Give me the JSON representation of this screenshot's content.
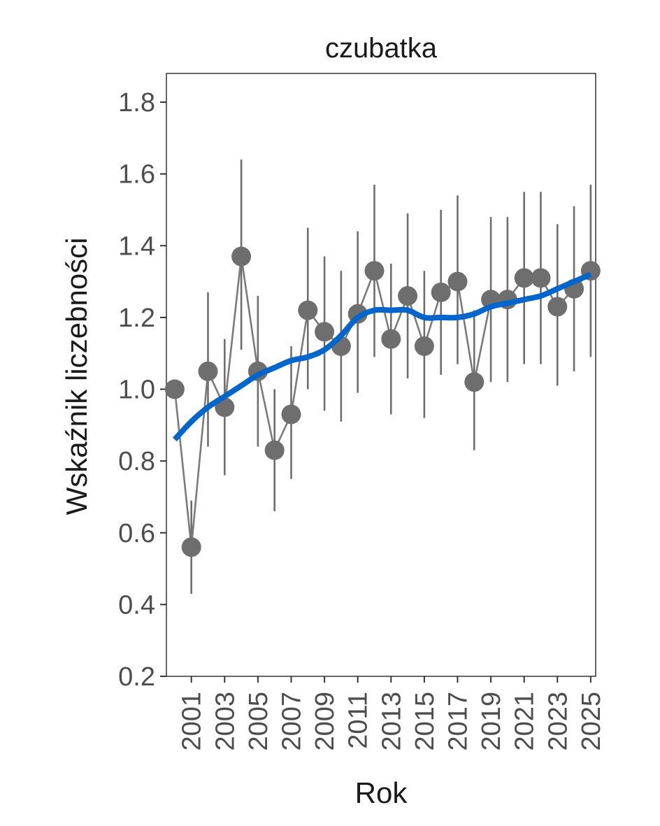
{
  "chart_data": {
    "type": "line",
    "title": "czubatka",
    "xlabel": "Rok",
    "ylabel": "Wskaźnik liczebności",
    "xlim": [
      1999.5,
      2025.3
    ],
    "ylim": [
      0.2,
      1.88
    ],
    "yticks": [
      0.2,
      0.4,
      0.6,
      0.8,
      1.0,
      1.2,
      1.4,
      1.6,
      1.8
    ],
    "ytick_labels": [
      "0.2",
      "0.4",
      "0.6",
      "0.8",
      "1.0",
      "1.2",
      "1.4",
      "1.6",
      "1.8"
    ],
    "xticks": [
      2001,
      2003,
      2005,
      2007,
      2009,
      2011,
      2013,
      2015,
      2017,
      2019,
      2021,
      2023,
      2025
    ],
    "xtick_labels": [
      "2001",
      "2003",
      "2005",
      "2007",
      "2009",
      "2011",
      "2013",
      "2015",
      "2017",
      "2019",
      "2021",
      "2023",
      "2025"
    ],
    "points": {
      "name": "Wskaźnik",
      "x": [
        2000,
        2001,
        2002,
        2003,
        2004,
        2005,
        2006,
        2007,
        2008,
        2009,
        2010,
        2011,
        2012,
        2013,
        2014,
        2015,
        2016,
        2017,
        2018,
        2019,
        2020,
        2021,
        2022,
        2023,
        2024,
        2025
      ],
      "y": [
        1.0,
        0.56,
        1.05,
        0.95,
        1.37,
        1.05,
        0.83,
        0.93,
        1.22,
        1.16,
        1.12,
        1.21,
        1.33,
        1.14,
        1.26,
        1.12,
        1.27,
        1.3,
        1.02,
        1.25,
        1.25,
        1.31,
        1.31,
        1.23,
        1.28,
        1.33
      ],
      "lower": [
        1.0,
        0.43,
        0.84,
        0.76,
        1.11,
        0.84,
        0.66,
        0.75,
        1.0,
        0.94,
        0.91,
        0.99,
        1.09,
        0.93,
        1.03,
        0.92,
        1.04,
        1.07,
        0.83,
        1.02,
        1.02,
        1.07,
        1.07,
        1.01,
        1.05,
        1.09
      ],
      "upper": [
        1.0,
        0.69,
        1.27,
        1.14,
        1.64,
        1.26,
        1.0,
        1.12,
        1.45,
        1.37,
        1.33,
        1.44,
        1.57,
        1.35,
        1.49,
        1.33,
        1.5,
        1.54,
        1.22,
        1.48,
        1.48,
        1.55,
        1.55,
        1.46,
        1.51,
        1.57
      ]
    },
    "trend": {
      "name": "Trend",
      "color": "#0066cc",
      "x": [
        2000,
        2001,
        2002,
        2003,
        2004,
        2005,
        2006,
        2007,
        2008,
        2009,
        2010,
        2011,
        2012,
        2013,
        2014,
        2015,
        2016,
        2017,
        2018,
        2019,
        2020,
        2021,
        2022,
        2023,
        2024,
        2025
      ],
      "y": [
        0.86,
        0.91,
        0.95,
        0.98,
        1.01,
        1.04,
        1.06,
        1.08,
        1.09,
        1.11,
        1.15,
        1.2,
        1.22,
        1.22,
        1.22,
        1.2,
        1.2,
        1.2,
        1.21,
        1.23,
        1.24,
        1.25,
        1.26,
        1.28,
        1.3,
        1.32
      ]
    },
    "point_color": "#6e6e6e"
  }
}
